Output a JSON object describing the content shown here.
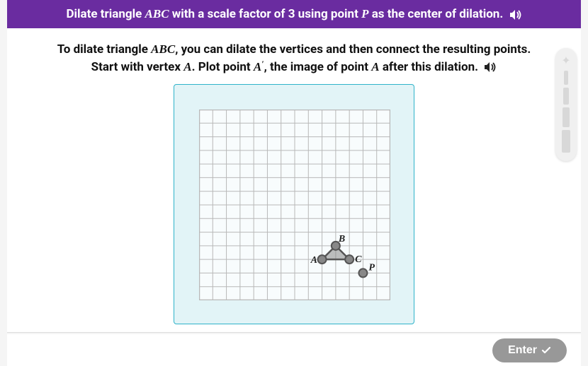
{
  "header": {
    "prefix": "Dilate triangle ",
    "triangle": "ABC",
    "mid": " with a scale factor of 3 using point ",
    "point": "P",
    "suffix": " as the center of dilation."
  },
  "instruction": {
    "t1": "To dilate triangle ",
    "i1": "ABC",
    "t2": ", you can dilate the vertices and then connect the resulting points. Start with vertex ",
    "i2": "A",
    "t3": ". Plot point ",
    "i3": "A",
    "prime": "′",
    "t4": ", the image of point ",
    "i4": "A",
    "t5": " after this dilation."
  },
  "grid": {
    "cells": 14,
    "cellSize": 19.2857,
    "border_color": "#b8b8b8",
    "line_color": "#b8b8b8",
    "bg": "#f8fcfd",
    "triangle": {
      "A": {
        "gx": 9,
        "gy": 11,
        "label": "A"
      },
      "B": {
        "gx": 10,
        "gy": 10,
        "label": "B"
      },
      "C": {
        "gx": 11,
        "gy": 11,
        "label": "C"
      },
      "fill": "#888888",
      "stroke": "#555555",
      "vertex_fill": "#888888",
      "vertex_stroke": "#555555",
      "vertex_r": 6
    },
    "P": {
      "gx": 12,
      "gy": 12,
      "label": "P",
      "fill": "#888888",
      "stroke": "#555555",
      "r": 6
    }
  },
  "footer": {
    "enter": "Enter"
  },
  "colors": {
    "header_bg": "#6a2ca0",
    "box_border": "#2fb3c9",
    "box_bg": "#e2f4f7",
    "btn_bg": "#989898"
  }
}
